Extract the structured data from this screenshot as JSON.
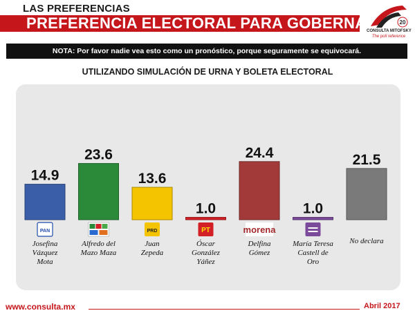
{
  "header": {
    "section": "LAS PREFERENCIAS",
    "title": "PREFERENCIA ELECTORAL PARA GOBERNADOR",
    "logo_name": "CONSULTA MITOFSKY",
    "logo_tagline": "The poll reference",
    "logo_badge": "20"
  },
  "note": "NOTA: Por favor nadie vea esto como un pronóstico, porque seguramente se equivocará.",
  "footer": {
    "url": "www.consulta.mx",
    "date": "Abril 2017"
  },
  "chart_data": {
    "type": "bar",
    "title": "UTILIZANDO SIMULACIÓN DE URNA Y BOLETA ELECTORAL",
    "categories": [
      "Josefina Vázquez Mota",
      "Alfredo del Mazo Maza",
      "Juan Zepeda",
      "Óscar González Yáñez",
      "Delfina Gómez",
      "María Teresa Castell de Oro",
      "No declara"
    ],
    "label_lines": [
      [
        "Josefina",
        "Vázquez",
        "Mota"
      ],
      [
        "Alfredo del",
        "Mazo Maza"
      ],
      [
        "Juan",
        "Zepeda"
      ],
      [
        "Óscar",
        "González",
        "Yáñez"
      ],
      [
        "Delfina",
        "Gómez"
      ],
      [
        "María Teresa",
        "Castell de",
        "Oro"
      ],
      [
        "No declara"
      ]
    ],
    "values": [
      14.9,
      23.6,
      13.6,
      1.0,
      24.4,
      1.0,
      21.5
    ],
    "value_labels": [
      "14.9",
      "23.6",
      "13.6",
      "1.0",
      "24.4",
      "1.0",
      "21.5"
    ],
    "colors": [
      "#3a5fa8",
      "#2a8a3a",
      "#f5c400",
      "#d31f26",
      "#a33a3a",
      "#7b4a9a",
      "#7a7a7a"
    ],
    "logos": [
      {
        "icon": "pan-logo",
        "text": "PAN",
        "bg": "#ffffff",
        "fg": "#1f4aa8"
      },
      {
        "icon": "pri-pvem-coalition-logo",
        "text": "",
        "bg": "#ffffff",
        "fg": "#2a8a3a"
      },
      {
        "icon": "prd-logo",
        "text": "PRD",
        "bg": "#f5c400",
        "fg": "#222222"
      },
      {
        "icon": "pt-logo",
        "text": "PT",
        "bg": "#d31f26",
        "fg": "#ffdd00"
      },
      {
        "icon": "morena-logo",
        "text": "morena",
        "bg": "#ffffff",
        "fg": "#a3282c"
      },
      {
        "icon": "encuentro-social-logo",
        "text": "",
        "bg": "#7b4a9a",
        "fg": "#ffffff"
      },
      {
        "icon": "no-party-icon",
        "text": "",
        "bg": "none",
        "fg": "none"
      }
    ],
    "ylim": [
      0,
      30
    ],
    "grid": false,
    "legend": "none"
  }
}
